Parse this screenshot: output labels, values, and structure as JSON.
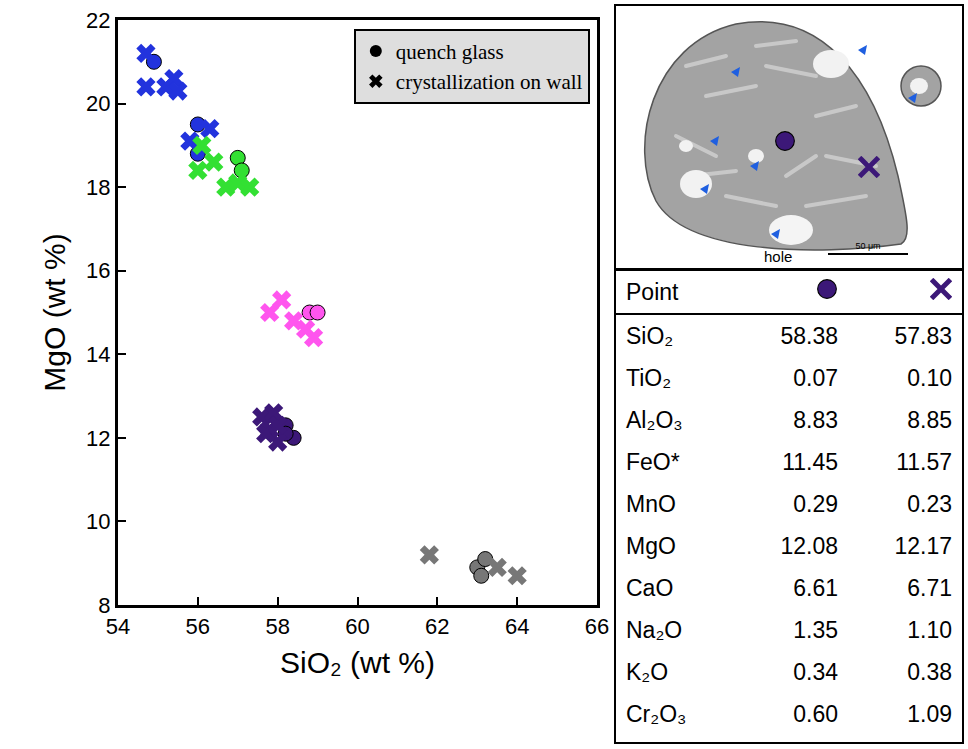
{
  "chart_data": {
    "type": "scatter",
    "x_label": "SiO₂ (wt %)",
    "y_label": "MgO (wt %)",
    "xlim": [
      54,
      66
    ],
    "xticks": [
      54,
      56,
      58,
      60,
      62,
      64,
      66
    ],
    "ylim": [
      8,
      22
    ],
    "yticks": [
      8,
      10,
      12,
      14,
      16,
      18,
      20,
      22
    ],
    "grid": false,
    "legend": "top right",
    "series": [
      {
        "name": "quench glass",
        "marker": "circle",
        "x": [
          54.9,
          56.0,
          56.0,
          57.0,
          57.1,
          58.8,
          59.0,
          58.2,
          58.4,
          58.2,
          63.0,
          63.2,
          63.1
        ],
        "values": [
          21.0,
          19.5,
          18.8,
          18.7,
          18.4,
          15.0,
          15.0,
          12.3,
          12.0,
          12.1,
          8.9,
          9.1,
          8.7
        ],
        "colors": [
          "#2233dd",
          "#2233dd",
          "#2233dd",
          "#33e033",
          "#33e033",
          "#ff55ee",
          "#ff55ee",
          "#3c1878",
          "#3c1878",
          "#3c1878",
          "#777777",
          "#777777",
          "#777777"
        ]
      },
      {
        "name": "crystallization on wall",
        "marker": "x",
        "x": [
          54.7,
          54.7,
          55.2,
          55.4,
          55.5,
          55.8,
          56.3,
          56.1,
          56.0,
          56.4,
          56.7,
          57.0,
          57.3,
          57.8,
          58.1,
          58.4,
          58.7,
          58.9,
          57.6,
          57.9,
          57.8,
          58.0,
          57.7,
          58.0,
          61.8,
          63.5,
          64.0
        ],
        "values": [
          21.2,
          20.4,
          20.4,
          20.6,
          20.3,
          19.1,
          19.4,
          19.0,
          18.4,
          18.6,
          18.0,
          18.1,
          18.0,
          15.0,
          15.3,
          14.8,
          14.6,
          14.4,
          12.5,
          12.6,
          12.2,
          11.9,
          12.1,
          12.3,
          9.2,
          8.9,
          8.7
        ],
        "colors": [
          "#2233dd",
          "#2233dd",
          "#2233dd",
          "#2233dd",
          "#2233dd",
          "#2233dd",
          "#2233dd",
          "#33e033",
          "#33e033",
          "#33e033",
          "#33e033",
          "#33e033",
          "#33e033",
          "#ff55ee",
          "#ff55ee",
          "#ff55ee",
          "#ff55ee",
          "#ff55ee",
          "#3c1878",
          "#3c1878",
          "#3c1878",
          "#3c1878",
          "#3c1878",
          "#3c1878",
          "#777777",
          "#777777",
          "#777777"
        ]
      }
    ]
  },
  "image": {
    "hole_label": "hole",
    "scale_bar": "50 μm"
  },
  "table": {
    "header": "Point",
    "columns": [
      {
        "marker": "circle",
        "color": "#3c1878"
      },
      {
        "marker": "x",
        "color": "#3c1878"
      }
    ],
    "rows": [
      [
        "SiO₂",
        "58.38",
        "57.83"
      ],
      [
        "TiO₂",
        "0.07",
        "0.10"
      ],
      [
        "Al₂O₃",
        "8.83",
        "8.85"
      ],
      [
        "FeO*",
        "11.45",
        "11.57"
      ],
      [
        "MnO",
        "0.29",
        "0.23"
      ],
      [
        "MgO",
        "12.08",
        "12.17"
      ],
      [
        "CaO",
        "6.61",
        "6.71"
      ],
      [
        "Na₂O",
        "1.35",
        "1.10"
      ],
      [
        "K₂O",
        "0.34",
        "0.38"
      ],
      [
        "Cr₂O₃",
        "0.60",
        "1.09"
      ]
    ]
  }
}
